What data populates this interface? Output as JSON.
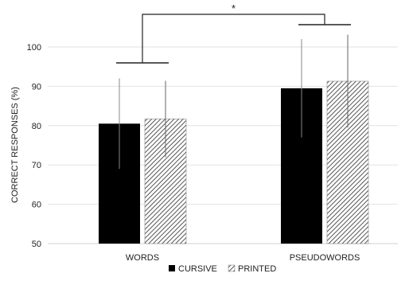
{
  "chart_data": {
    "type": "bar",
    "categories": [
      "WORDS",
      "PSEUDOWORDS"
    ],
    "series": [
      {
        "name": "CURSIVE",
        "values": [
          80.5,
          89.5
        ],
        "error": [
          11.5,
          12.5
        ],
        "fill": "#000000",
        "pattern": "solid"
      },
      {
        "name": "PRINTED",
        "values": [
          81.7,
          91.3
        ],
        "error": [
          9.7,
          11.8
        ],
        "fill": "#8c8c8c",
        "pattern": "diagonal-hatch"
      }
    ],
    "ylabel": "CORRECT RESPONSES (%)",
    "ylim": [
      50,
      100
    ],
    "yticks": [
      50,
      60,
      70,
      80,
      90,
      100
    ],
    "grid": true,
    "legend_position": "bottom",
    "significance": {
      "label": "*",
      "between": [
        "WORDS",
        "PSEUDOWORDS"
      ]
    }
  }
}
